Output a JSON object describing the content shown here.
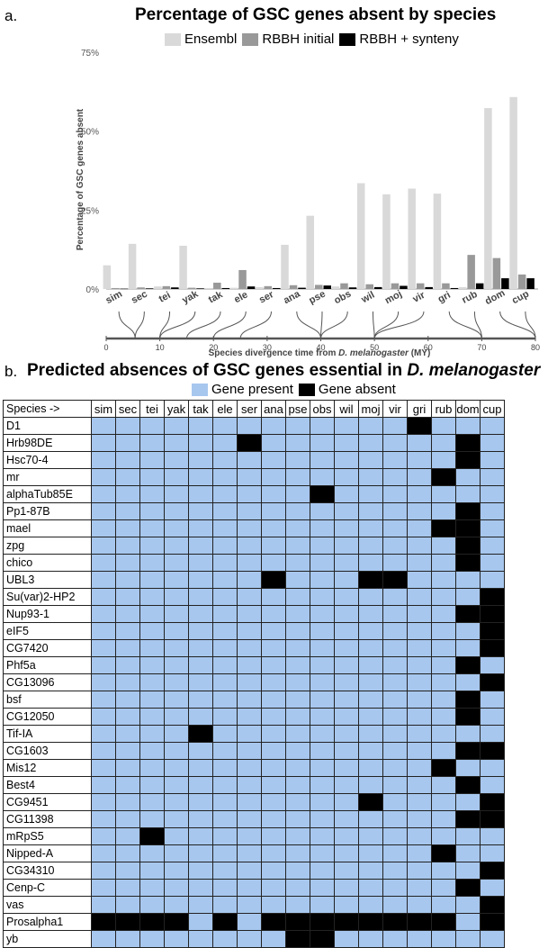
{
  "panel_a": {
    "letter": "a.",
    "title": "Percentage of GSC genes absent by species",
    "legend": [
      {
        "label": "Ensembl",
        "color": "#d9d9d9"
      },
      {
        "label": "RBBH initial",
        "color": "#999999"
      },
      {
        "label": "RBBH + synteny",
        "color": "#000000"
      }
    ]
  },
  "panel_b": {
    "letter": "b.",
    "title": "Predicted absences of GSC genes essential in D. melanogaster",
    "legend": [
      {
        "label": "Gene present",
        "color": "#a7c7ee"
      },
      {
        "label": "Gene absent",
        "color": "#000000"
      }
    ],
    "header_label": "Species ->"
  },
  "chart_data": [
    {
      "type": "bar",
      "title": "Percentage of GSC genes absent by species",
      "ylabel": "Percentage of GSC genes absent",
      "xlabel": "Species divergence time from D. melanogaster (MY)",
      "yticks": [
        "0%",
        "25%",
        "50%",
        "75%"
      ],
      "ylim": [
        0,
        75
      ],
      "categories": [
        "sim",
        "sec",
        "tei",
        "yak",
        "tak",
        "ele",
        "ser",
        "ana",
        "pse",
        "obs",
        "wil",
        "moj",
        "vir",
        "gri",
        "rub",
        "dom",
        "cup"
      ],
      "series": [
        {
          "name": "Ensembl",
          "values": [
            7.5,
            14.3,
            0.8,
            13.7,
            0.3,
            0.4,
            0.6,
            14.0,
            23.2,
            0.8,
            33.5,
            30.0,
            31.8,
            30.2,
            0.6,
            57.3,
            60.8
          ]
        },
        {
          "name": "RBBH initial",
          "values": [
            0.3,
            0.5,
            0.9,
            0.4,
            2.0,
            6.0,
            0.9,
            1.2,
            1.3,
            1.8,
            1.5,
            1.8,
            1.8,
            1.8,
            10.8,
            9.8,
            4.6
          ]
        },
        {
          "name": "RBBH + synteny",
          "values": [
            0.1,
            0.2,
            0.5,
            0.2,
            0.3,
            0.8,
            0.3,
            0.4,
            1.1,
            0.5,
            0.6,
            1.0,
            0.6,
            0.3,
            1.8,
            3.4,
            3.4
          ]
        }
      ],
      "divergence_axis": {
        "ticks": [
          0,
          10,
          20,
          30,
          40,
          50,
          60,
          70,
          80
        ],
        "range": [
          0,
          80
        ],
        "species_times": [
          5.4,
          5.4,
          10,
          10,
          15,
          20,
          25,
          40,
          40,
          40,
          50,
          50,
          50,
          70,
          70,
          80,
          80
        ]
      }
    },
    {
      "type": "table",
      "title": "Predicted absences of GSC genes essential in D. melanogaster",
      "columns": [
        "sim",
        "sec",
        "tei",
        "yak",
        "tak",
        "ele",
        "ser",
        "ana",
        "pse",
        "obs",
        "wil",
        "moj",
        "vir",
        "gri",
        "rub",
        "dom",
        "cup"
      ],
      "rows": [
        {
          "gene": "D1",
          "absent": [
            "gri"
          ]
        },
        {
          "gene": "Hrb98DE",
          "absent": [
            "ser",
            "dom"
          ]
        },
        {
          "gene": "Hsc70-4",
          "absent": [
            "dom"
          ]
        },
        {
          "gene": "mr",
          "absent": [
            "rub"
          ]
        },
        {
          "gene": "alphaTub85E",
          "absent": [
            "obs"
          ]
        },
        {
          "gene": "Pp1-87B",
          "absent": [
            "dom"
          ]
        },
        {
          "gene": "mael",
          "absent": [
            "rub",
            "dom"
          ]
        },
        {
          "gene": "zpg",
          "absent": [
            "dom"
          ]
        },
        {
          "gene": "chico",
          "absent": [
            "dom"
          ]
        },
        {
          "gene": "UBL3",
          "absent": [
            "ana",
            "moj",
            "vir"
          ]
        },
        {
          "gene": "Su(var)2-HP2",
          "absent": [
            "cup"
          ]
        },
        {
          "gene": "Nup93-1",
          "absent": [
            "dom",
            "cup"
          ]
        },
        {
          "gene": "eIF5",
          "absent": [
            "cup"
          ]
        },
        {
          "gene": "CG7420",
          "absent": [
            "cup"
          ]
        },
        {
          "gene": "Phf5a",
          "absent": [
            "dom"
          ]
        },
        {
          "gene": "CG13096",
          "absent": [
            "cup"
          ]
        },
        {
          "gene": "bsf",
          "absent": [
            "dom"
          ]
        },
        {
          "gene": "CG12050",
          "absent": [
            "dom"
          ]
        },
        {
          "gene": "Tif-IA",
          "absent": [
            "tak"
          ]
        },
        {
          "gene": "CG1603",
          "absent": [
            "dom",
            "cup"
          ]
        },
        {
          "gene": "Mis12",
          "absent": [
            "rub"
          ]
        },
        {
          "gene": "Best4",
          "absent": [
            "dom"
          ]
        },
        {
          "gene": "CG9451",
          "absent": [
            "moj",
            "cup"
          ]
        },
        {
          "gene": "CG11398",
          "absent": [
            "dom",
            "cup"
          ]
        },
        {
          "gene": "mRpS5",
          "absent": [
            "tei"
          ]
        },
        {
          "gene": "Nipped-A",
          "absent": [
            "rub"
          ]
        },
        {
          "gene": "CG34310",
          "absent": [
            "cup"
          ]
        },
        {
          "gene": "Cenp-C",
          "absent": [
            "dom"
          ]
        },
        {
          "gene": "vas",
          "absent": [
            "cup"
          ]
        },
        {
          "gene": "Prosalpha1",
          "absent": [
            "sim",
            "sec",
            "tei",
            "yak",
            "ele",
            "ana",
            "pse",
            "obs",
            "wil",
            "moj",
            "vir",
            "gri",
            "rub",
            "cup"
          ]
        },
        {
          "gene": "yb",
          "absent": [
            "pse",
            "obs"
          ]
        }
      ]
    }
  ]
}
